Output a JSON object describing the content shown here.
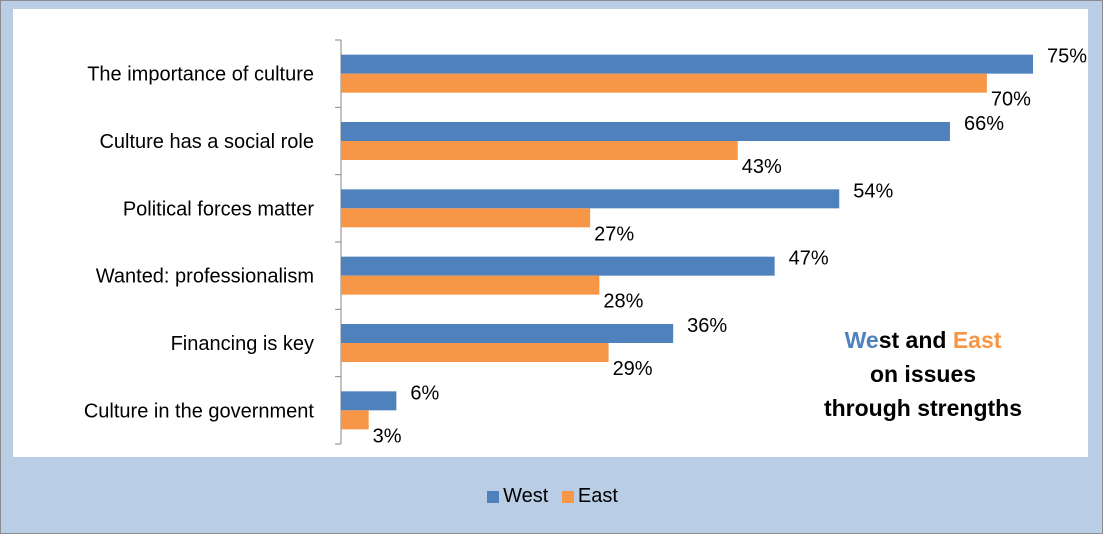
{
  "chart_data": {
    "type": "bar",
    "orientation": "horizontal",
    "categories": [
      "The importance of culture",
      "Culture has a social role",
      "Political forces matter",
      "Wanted: professionalism",
      "Financing is key",
      "Culture in the government"
    ],
    "series": [
      {
        "name": "West",
        "values": [
          75,
          66,
          54,
          47,
          36,
          6
        ],
        "labels": [
          "75%",
          "66%",
          "54%",
          "47%",
          "36%",
          "6%"
        ],
        "color": "#4f81bd"
      },
      {
        "name": "East",
        "values": [
          70,
          43,
          27,
          28,
          29,
          3
        ],
        "labels": [
          "70%",
          "43%",
          "27%",
          "28%",
          "29%",
          "3%"
        ],
        "color": "#f79646"
      }
    ],
    "xlim": [
      0,
      75
    ],
    "grid": false,
    "legend_position": "bottom",
    "annotation": {
      "line1_part1": "We",
      "line1_part2": "st and ",
      "line1_part3": "East",
      "line2": "on issues",
      "line3": "through strengths",
      "color_west": "#4f81bd",
      "color_east": "#f79646"
    }
  }
}
